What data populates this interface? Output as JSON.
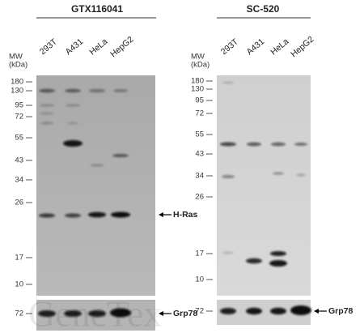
{
  "panels": [
    {
      "title": "GTX116041",
      "lanes": [
        "293T",
        "A431",
        "HeLa",
        "HepG2"
      ],
      "mw_header": [
        "MW",
        "(kDa)"
      ],
      "mw_markers": [
        "180",
        "130",
        "95",
        "72",
        "55",
        "43",
        "34",
        "26",
        "17",
        "10"
      ],
      "band_label": "H-Ras",
      "control_marker": "72",
      "control_label": "Grp78"
    },
    {
      "title": "SC-520",
      "lanes": [
        "293T",
        "A431",
        "HeLa",
        "HepG2"
      ],
      "mw_header": [
        "MW",
        "(kDa)"
      ],
      "mw_markers": [
        "180",
        "130",
        "95",
        "72",
        "55",
        "43",
        "34",
        "26",
        "17",
        "10"
      ],
      "control_marker": "72",
      "control_label": "Grp78"
    }
  ],
  "watermark": "GeneTex"
}
